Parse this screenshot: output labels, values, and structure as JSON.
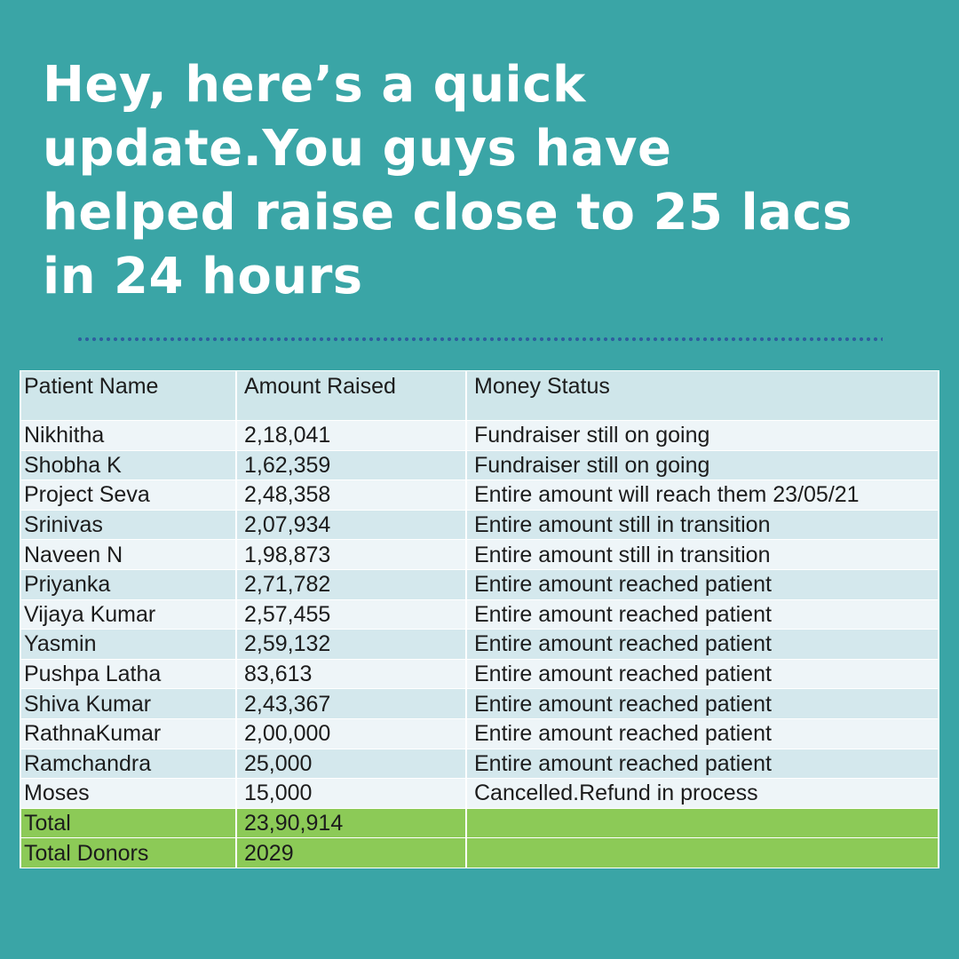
{
  "headline": {
    "lines": [
      "Hey, here’s a quick",
      "update.You guys have",
      "helped raise close to 25 lacs",
      "in 24 hours"
    ]
  },
  "table": {
    "headers": [
      "Patient Name",
      "Amount Raised",
      "Money Status"
    ],
    "rows": [
      {
        "name": "Nikhitha",
        "amount": "2,18,041",
        "status": "Fundraiser still on going"
      },
      {
        "name": "Shobha K",
        "amount": "1,62,359",
        "status": "Fundraiser still on going"
      },
      {
        "name": "Project Seva",
        "amount": "2,48,358",
        "status": "Entire amount will reach them 23/05/21"
      },
      {
        "name": "Srinivas",
        "amount": "2,07,934",
        "status": "Entire amount still in transition"
      },
      {
        "name": "Naveen N",
        "amount": "1,98,873",
        "status": "Entire amount still in transition"
      },
      {
        "name": "Priyanka",
        "amount": "2,71,782",
        "status": "Entire amount reached patient"
      },
      {
        "name": "Vijaya Kumar",
        "amount": "2,57,455",
        "status": "Entire amount reached patient"
      },
      {
        "name": "Yasmin",
        "amount": "2,59,132",
        "status": "Entire amount reached patient"
      },
      {
        "name": "Pushpa Latha",
        "amount": "83,613",
        "status": "Entire amount reached patient"
      },
      {
        "name": "Shiva Kumar",
        "amount": "2,43,367",
        "status": "Entire amount reached patient"
      },
      {
        "name": "RathnaKumar",
        "amount": "2,00,000",
        "status": "Entire amount reached patient"
      },
      {
        "name": "Ramchandra",
        "amount": "25,000",
        "status": "Entire amount reached patient"
      },
      {
        "name": "Moses",
        "amount": "15,000",
        "status": "Cancelled.Refund in process"
      }
    ],
    "totals": [
      {
        "label": "Total",
        "value": "23,90,914",
        "note": ""
      },
      {
        "label": "Total Donors",
        "value": "2029",
        "note": ""
      }
    ]
  },
  "colors": {
    "background": "#3aa5a6",
    "headline_text": "#ffffff",
    "divider_dots": "#2f5f9e",
    "header_row": "#cfe6ea",
    "row_light": "#eef5f8",
    "row_tint": "#d4e8ed",
    "total_rows": "#8cca57"
  }
}
